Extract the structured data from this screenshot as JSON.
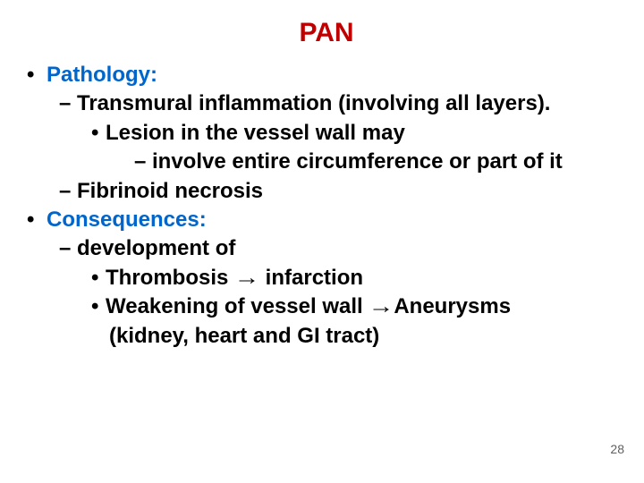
{
  "title": {
    "text": "PAN",
    "color": "#c00000"
  },
  "accent_color": "#0066cc",
  "text_color": "#000000",
  "page_number": "28",
  "lines": [
    {
      "level": 1,
      "bullet": "•",
      "text": "Pathology:",
      "accent": true
    },
    {
      "level": 2,
      "bullet": "–",
      "text": "Transmural inflammation (involving all layers)."
    },
    {
      "level": 3,
      "bullet": "•",
      "text": "Lesion in the vessel wall may"
    },
    {
      "level": 4,
      "bullet": "–",
      "text": "involve entire circumference or part of it"
    },
    {
      "level": 2,
      "bullet": "–",
      "text": "Fibrinoid necrosis"
    },
    {
      "level": 1,
      "bullet": "•",
      "text": "Consequences:",
      "accent": true
    },
    {
      "level": 2,
      "bullet": "–",
      "text": "development of"
    },
    {
      "level": 3,
      "bullet": "•",
      "text": "Thrombosis [ARROW]  infarction"
    },
    {
      "level": 3,
      "bullet": "•",
      "text": "Weakening of vessel wall [ARROW]Aneurysms"
    },
    {
      "level": "wrap",
      "text": "(kidney, heart and GI tract)"
    }
  ]
}
